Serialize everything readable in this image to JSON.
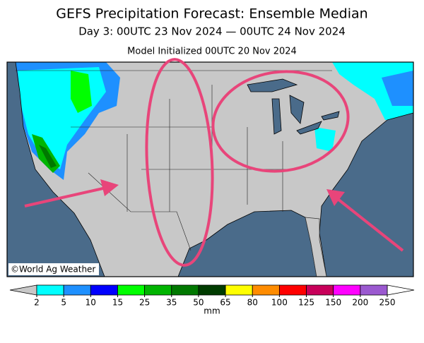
{
  "header": {
    "title": "GEFS Precipitation Forecast: Ensemble Median",
    "subtitle": "Day 3: 00UTC 23 Nov 2024 — 00UTC 24 Nov 2024",
    "init": "Model Initialized 00UTC 20 Nov 2024"
  },
  "map": {
    "watermark": "©World Ag Weather"
  },
  "colorbar": {
    "ticks": [
      2,
      5,
      10,
      15,
      25,
      35,
      50,
      65,
      80,
      100,
      125,
      150,
      200,
      250
    ],
    "colors": [
      "#00ffff",
      "#1e90ff",
      "#0000ff",
      "#00ff00",
      "#00b400",
      "#007800",
      "#003c00",
      "#ffff00",
      "#ff8c00",
      "#ff0000",
      "#c8005a",
      "#ff00ff",
      "#9b59d0"
    ],
    "under_color": "#c8c8c8",
    "over_color": "#ffffff",
    "unit": "mm"
  }
}
